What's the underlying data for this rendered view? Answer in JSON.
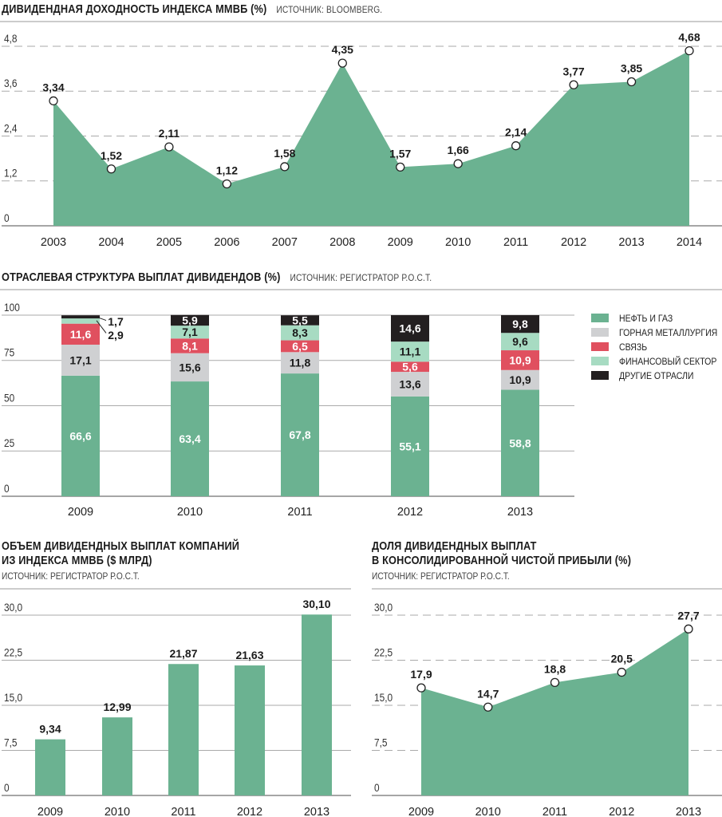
{
  "colors": {
    "green": "#6bb291",
    "gray": "#cfd0d2",
    "red": "#e0505f",
    "lightgreen": "#a7dbc2",
    "black": "#231f20",
    "axis": "#999999"
  },
  "chart_data": [
    {
      "type": "area",
      "title": "ДИВИДЕНДНАЯ ДОХОДНОСТЬ ИНДЕКСА ММВБ (%)",
      "source": "ИСТОЧНИК: BLOOMBERG.",
      "x": [
        "2003",
        "2004",
        "2005",
        "2006",
        "2007",
        "2008",
        "2009",
        "2010",
        "2011",
        "2012",
        "2013",
        "2014"
      ],
      "values": [
        3.34,
        1.52,
        2.11,
        1.12,
        1.58,
        4.35,
        1.57,
        1.66,
        2.14,
        3.77,
        3.85,
        4.68
      ],
      "labels": [
        "3,34",
        "1,52",
        "2,11",
        "1,12",
        "1,58",
        "4,35",
        "1,57",
        "1,66",
        "2,14",
        "3,77",
        "3,85",
        "4,68"
      ],
      "yticks": [
        "0",
        "1,2",
        "2,4",
        "3,6",
        "4,8"
      ],
      "ytick_values": [
        0,
        1.2,
        2.4,
        3.6,
        4.8
      ],
      "ylim": [
        0,
        4.8
      ],
      "grid": true
    },
    {
      "type": "stacked-bar",
      "title": "ОТРАСЛЕВАЯ СТРУКТУРА ВЫПЛАТ ДИВИДЕНДОВ (%)",
      "source": "ИСТОЧНИК: РЕГИСТРАТОР Р.О.С.Т.",
      "categories": [
        "2009",
        "2010",
        "2011",
        "2012",
        "2013"
      ],
      "series": [
        {
          "name": "НЕФТЬ И ГАЗ",
          "color": "#6bb291",
          "values": [
            66.6,
            63.4,
            67.8,
            55.1,
            58.8
          ],
          "labels": [
            "66,6",
            "63,4",
            "67,8",
            "55,1",
            "58,8"
          ]
        },
        {
          "name": "ГОРНАЯ МЕТАЛЛУРГИЯ",
          "color": "#cfd0d2",
          "values": [
            17.1,
            15.6,
            11.8,
            13.6,
            10.9
          ],
          "labels": [
            "17,1",
            "15,6",
            "11,8",
            "13,6",
            "10,9"
          ]
        },
        {
          "name": "СВЯЗЬ",
          "color": "#e0505f",
          "values": [
            11.6,
            8.1,
            6.5,
            5.6,
            10.9
          ],
          "labels": [
            "11,6",
            "8,1",
            "6,5",
            "5,6",
            "10,9"
          ]
        },
        {
          "name": "ФИНАНСОВЫЙ СЕКТОР",
          "color": "#a7dbc2",
          "values": [
            2.9,
            7.1,
            8.3,
            11.1,
            9.6
          ],
          "labels": [
            "2,9",
            "7,1",
            "8,3",
            "11,1",
            "9,6"
          ]
        },
        {
          "name": "ДРУГИЕ ОТРАСЛИ",
          "color": "#231f20",
          "values": [
            1.7,
            5.9,
            5.5,
            14.6,
            9.8
          ],
          "labels": [
            "1,7",
            "5,9",
            "5,5",
            "14,6",
            "9,8"
          ]
        }
      ],
      "yticks": [
        "0",
        "25",
        "50",
        "75",
        "100"
      ],
      "ytick_values": [
        0,
        25,
        50,
        75,
        100
      ],
      "ylim": [
        0,
        100
      ],
      "legend": "right"
    },
    {
      "type": "bar",
      "title_lines": [
        "ОБЪЕМ ДИВИДЕНДНЫХ ВЫПЛАТ КОМПАНИЙ",
        "ИЗ ИНДЕКСА ММВБ ($ МЛРД)"
      ],
      "source": "ИСТОЧНИК: РЕГИСТРАТОР Р.О.С.Т.",
      "categories": [
        "2009",
        "2010",
        "2011",
        "2012",
        "2013"
      ],
      "values": [
        9.34,
        12.99,
        21.87,
        21.63,
        30.1
      ],
      "labels": [
        "9,34",
        "12,99",
        "21,87",
        "21,63",
        "30,10"
      ],
      "yticks": [
        "0",
        "7,5",
        "15,0",
        "22,5",
        "30,0"
      ],
      "ytick_values": [
        0,
        7.5,
        15,
        22.5,
        30
      ],
      "ylim": [
        0,
        30
      ]
    },
    {
      "type": "area",
      "title_lines": [
        "ДОЛЯ ДИВИДЕНДНЫХ ВЫПЛАТ",
        "В КОНСОЛИДИРОВАННОЙ ЧИСТОЙ ПРИБЫЛИ (%)"
      ],
      "source": "ИСТОЧНИК: РЕГИСТРАТОР Р.О.С.Т.",
      "x": [
        "2009",
        "2010",
        "2011",
        "2012",
        "2013"
      ],
      "values": [
        17.9,
        14.7,
        18.8,
        20.5,
        27.7
      ],
      "labels": [
        "17,9",
        "14,7",
        "18,8",
        "20,5",
        "27,7"
      ],
      "yticks": [
        "0",
        "7,5",
        "15,0",
        "22,5",
        "30,0"
      ],
      "ytick_values": [
        0,
        7.5,
        15,
        22.5,
        30
      ],
      "ylim": [
        0,
        30
      ]
    }
  ]
}
